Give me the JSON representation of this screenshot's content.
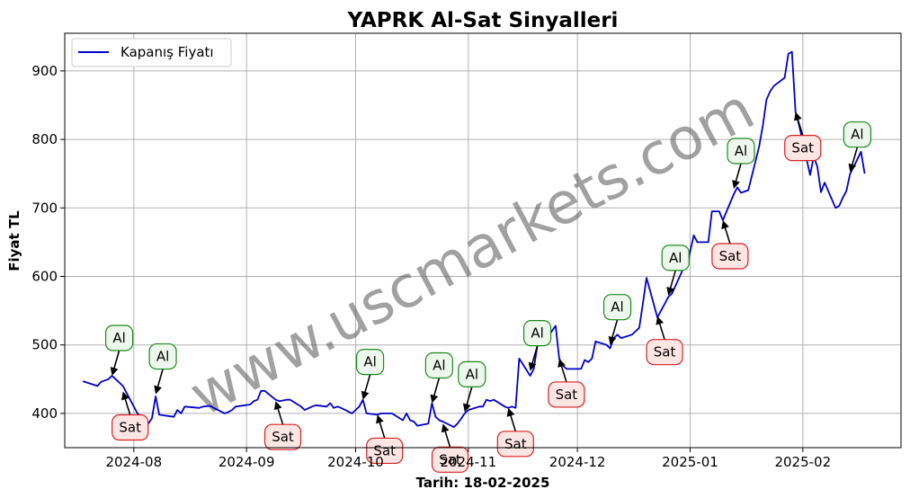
{
  "chart_data": {
    "type": "line",
    "title": "YAPRK Al-Sat Sinyalleri",
    "xlabel": "Tarih: 18-02-2025",
    "ylabel": "Fiyat TL",
    "xlim": [
      "2024-07-13",
      "2025-02-28"
    ],
    "ylim": [
      350,
      955
    ],
    "yticks": [
      400,
      500,
      600,
      700,
      800,
      900
    ],
    "xticks": [
      {
        "date": "2024-08-01",
        "label": "2024-08"
      },
      {
        "date": "2024-09-01",
        "label": "2024-09"
      },
      {
        "date": "2024-10-01",
        "label": "2024-10"
      },
      {
        "date": "2024-11-01",
        "label": "2024-11"
      },
      {
        "date": "2024-12-01",
        "label": "2024-12"
      },
      {
        "date": "2025-01-01",
        "label": "2025-01"
      },
      {
        "date": "2025-02-01",
        "label": "2025-02"
      }
    ],
    "grid": true,
    "legend_position": "top-left",
    "series": [
      {
        "name": "Kapanış Fiyatı",
        "color": "#0000cc",
        "points": [
          [
            "2024-07-18",
            447
          ],
          [
            "2024-07-22",
            440
          ],
          [
            "2024-07-23",
            446
          ],
          [
            "2024-07-25",
            450
          ],
          [
            "2024-07-26",
            455
          ],
          [
            "2024-07-29",
            440
          ],
          [
            "2024-07-30",
            430
          ],
          [
            "2024-07-31",
            420
          ],
          [
            "2024-08-01",
            410
          ],
          [
            "2024-08-02",
            400
          ],
          [
            "2024-08-05",
            385
          ],
          [
            "2024-08-06",
            393
          ],
          [
            "2024-08-07",
            425
          ],
          [
            "2024-08-08",
            398
          ],
          [
            "2024-08-12",
            395
          ],
          [
            "2024-08-13",
            405
          ],
          [
            "2024-08-14",
            400
          ],
          [
            "2024-08-15",
            410
          ],
          [
            "2024-08-19",
            408
          ],
          [
            "2024-08-20",
            410
          ],
          [
            "2024-08-22",
            411
          ],
          [
            "2024-08-23",
            408
          ],
          [
            "2024-08-26",
            400
          ],
          [
            "2024-08-27",
            402
          ],
          [
            "2024-08-28",
            405
          ],
          [
            "2024-08-29",
            410
          ],
          [
            "2024-09-02",
            413
          ],
          [
            "2024-09-03",
            418
          ],
          [
            "2024-09-04",
            420
          ],
          [
            "2024-09-05",
            433
          ],
          [
            "2024-09-06",
            433
          ],
          [
            "2024-09-09",
            420
          ],
          [
            "2024-09-10",
            418
          ],
          [
            "2024-09-12",
            420
          ],
          [
            "2024-09-13",
            420
          ],
          [
            "2024-09-16",
            410
          ],
          [
            "2024-09-17",
            405
          ],
          [
            "2024-09-19",
            410
          ],
          [
            "2024-09-20",
            412
          ],
          [
            "2024-09-23",
            410
          ],
          [
            "2024-09-24",
            415
          ],
          [
            "2024-09-25",
            408
          ],
          [
            "2024-09-26",
            410
          ],
          [
            "2024-09-27",
            408
          ],
          [
            "2024-09-30",
            400
          ],
          [
            "2024-10-01",
            405
          ],
          [
            "2024-10-02",
            410
          ],
          [
            "2024-10-03",
            420
          ],
          [
            "2024-10-04",
            400
          ],
          [
            "2024-10-07",
            398
          ],
          [
            "2024-10-08",
            400
          ],
          [
            "2024-10-10",
            400
          ],
          [
            "2024-10-11",
            400
          ],
          [
            "2024-10-14",
            390
          ],
          [
            "2024-10-15",
            400
          ],
          [
            "2024-10-16",
            390
          ],
          [
            "2024-10-17",
            388
          ],
          [
            "2024-10-18",
            382
          ],
          [
            "2024-10-21",
            385
          ],
          [
            "2024-10-22",
            415
          ],
          [
            "2024-10-23",
            395
          ],
          [
            "2024-10-24",
            390
          ],
          [
            "2024-10-25",
            388
          ],
          [
            "2024-10-28",
            380
          ],
          [
            "2024-10-29",
            385
          ],
          [
            "2024-10-30",
            392
          ],
          [
            "2024-10-31",
            400
          ],
          [
            "2024-11-01",
            405
          ],
          [
            "2024-11-04",
            410
          ],
          [
            "2024-11-05",
            410
          ],
          [
            "2024-11-06",
            420
          ],
          [
            "2024-11-07",
            418
          ],
          [
            "2024-11-08",
            420
          ],
          [
            "2024-11-11",
            410
          ],
          [
            "2024-11-12",
            408
          ],
          [
            "2024-11-13",
            410
          ],
          [
            "2024-11-14",
            408
          ],
          [
            "2024-11-15",
            480
          ],
          [
            "2024-11-18",
            455
          ],
          [
            "2024-11-19",
            465
          ],
          [
            "2024-11-20",
            500
          ],
          [
            "2024-11-21",
            510
          ],
          [
            "2024-11-22",
            505
          ],
          [
            "2024-11-25",
            528
          ],
          [
            "2024-11-26",
            480
          ],
          [
            "2024-11-27",
            470
          ],
          [
            "2024-11-28",
            465
          ],
          [
            "2024-11-29",
            465
          ],
          [
            "2024-12-02",
            465
          ],
          [
            "2024-12-03",
            478
          ],
          [
            "2024-12-04",
            475
          ],
          [
            "2024-12-05",
            480
          ],
          [
            "2024-12-06",
            505
          ],
          [
            "2024-12-09",
            500
          ],
          [
            "2024-12-10",
            495
          ],
          [
            "2024-12-11",
            510
          ],
          [
            "2024-12-12",
            515
          ],
          [
            "2024-12-13",
            510
          ],
          [
            "2024-12-16",
            515
          ],
          [
            "2024-12-17",
            520
          ],
          [
            "2024-12-18",
            525
          ],
          [
            "2024-12-19",
            560
          ],
          [
            "2024-12-20",
            598
          ],
          [
            "2024-12-23",
            540
          ],
          [
            "2024-12-24",
            550
          ],
          [
            "2024-12-25",
            560
          ],
          [
            "2024-12-26",
            570
          ],
          [
            "2024-12-27",
            575
          ],
          [
            "2024-12-30",
            610
          ],
          [
            "2024-12-31",
            612
          ],
          [
            "2025-01-02",
            660
          ],
          [
            "2025-01-03",
            650
          ],
          [
            "2025-01-06",
            650
          ],
          [
            "2025-01-07",
            695
          ],
          [
            "2025-01-08",
            695
          ],
          [
            "2025-01-09",
            695
          ],
          [
            "2025-01-10",
            682
          ],
          [
            "2025-01-13",
            720
          ],
          [
            "2025-01-14",
            730
          ],
          [
            "2025-01-15",
            722
          ],
          [
            "2025-01-16",
            724
          ],
          [
            "2025-01-17",
            726
          ],
          [
            "2025-01-20",
            790
          ],
          [
            "2025-01-21",
            820
          ],
          [
            "2025-01-22",
            858
          ],
          [
            "2025-01-23",
            870
          ],
          [
            "2025-01-24",
            878
          ],
          [
            "2025-01-27",
            890
          ],
          [
            "2025-01-28",
            925
          ],
          [
            "2025-01-29",
            928
          ],
          [
            "2025-01-30",
            840
          ],
          [
            "2025-01-31",
            820
          ],
          [
            "2025-02-03",
            748
          ],
          [
            "2025-02-04",
            775
          ],
          [
            "2025-02-05",
            760
          ],
          [
            "2025-02-06",
            723
          ],
          [
            "2025-02-07",
            737
          ],
          [
            "2025-02-10",
            700
          ],
          [
            "2025-02-11",
            703
          ],
          [
            "2025-02-12",
            715
          ],
          [
            "2025-02-13",
            725
          ],
          [
            "2025-02-14",
            750
          ],
          [
            "2025-02-15",
            760
          ],
          [
            "2025-02-17",
            782
          ],
          [
            "2025-02-18",
            750
          ]
        ]
      }
    ],
    "annotations": [
      {
        "text": "Al",
        "type": "buy",
        "date": "2024-07-26",
        "price": 455
      },
      {
        "text": "Sat",
        "type": "sell",
        "date": "2024-07-29",
        "price": 432
      },
      {
        "text": "Al",
        "type": "buy",
        "date": "2024-08-07",
        "price": 428
      },
      {
        "text": "Sat",
        "type": "sell",
        "date": "2024-09-09",
        "price": 418
      },
      {
        "text": "Al",
        "type": "buy",
        "date": "2024-10-03",
        "price": 420
      },
      {
        "text": "Sat",
        "type": "sell",
        "date": "2024-10-07",
        "price": 398
      },
      {
        "text": "Al",
        "type": "buy",
        "date": "2024-10-22",
        "price": 415
      },
      {
        "text": "Sat",
        "type": "sell",
        "date": "2024-10-25",
        "price": 385
      },
      {
        "text": "Al",
        "type": "buy",
        "date": "2024-10-31",
        "price": 402
      },
      {
        "text": "Sat",
        "type": "sell",
        "date": "2024-11-12",
        "price": 408
      },
      {
        "text": "Al",
        "type": "buy",
        "date": "2024-11-18",
        "price": 462
      },
      {
        "text": "Sat",
        "type": "sell",
        "date": "2024-11-26",
        "price": 480
      },
      {
        "text": "Al",
        "type": "buy",
        "date": "2024-12-10",
        "price": 500
      },
      {
        "text": "Sat",
        "type": "sell",
        "date": "2024-12-23",
        "price": 542
      },
      {
        "text": "Al",
        "type": "buy",
        "date": "2024-12-26",
        "price": 572
      },
      {
        "text": "Sat",
        "type": "sell",
        "date": "2025-01-10",
        "price": 682
      },
      {
        "text": "Al",
        "type": "buy",
        "date": "2025-01-13",
        "price": 728
      },
      {
        "text": "Sat",
        "type": "sell",
        "date": "2025-01-30",
        "price": 840
      },
      {
        "text": "Al",
        "type": "buy",
        "date": "2025-02-14",
        "price": 752
      }
    ],
    "watermark": "www.uscmarkets.com"
  }
}
